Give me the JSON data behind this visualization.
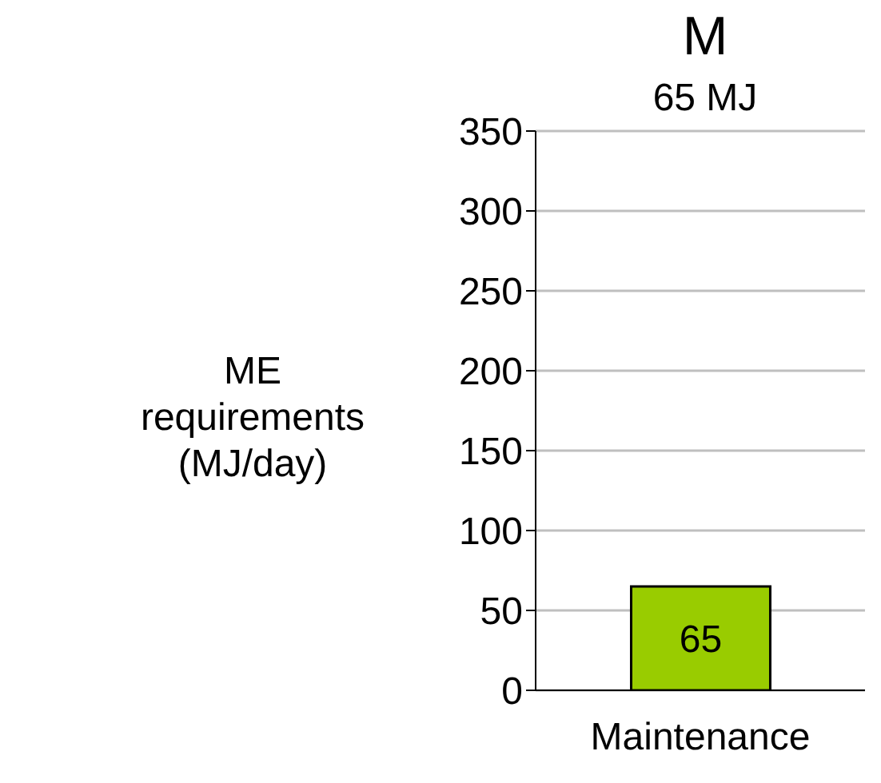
{
  "chart_data": {
    "type": "bar",
    "title": "M",
    "subtitle": "65 MJ",
    "ylabel": "ME requirements (MJ/day)",
    "categories": [
      "Maintenance"
    ],
    "values": [
      65
    ],
    "color": "#99cc00",
    "ylim": [
      0,
      350
    ],
    "yticks": [
      0,
      50,
      100,
      150,
      200,
      250,
      300,
      350
    ],
    "grid": "y",
    "data_labels": true
  }
}
